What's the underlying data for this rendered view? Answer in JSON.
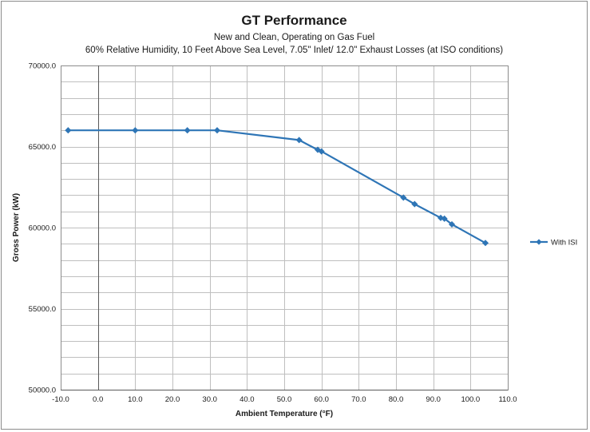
{
  "chart_data": {
    "type": "line",
    "title": "GT Performance",
    "subtitle_lines": [
      "New and Clean, Operating on Gas Fuel",
      "60% Relative Humidity, 10 Feet Above Sea Level, 7.05\"  Inlet/ 12.0\"  Exhaust Losses (at ISO conditions)"
    ],
    "xlabel": "Ambient Temperature (°F)",
    "ylabel": "Gross Power (kW)",
    "xlim": [
      -10,
      110
    ],
    "ylim": [
      50000,
      70000
    ],
    "x_major_step": 10,
    "y_major_step": 5000,
    "y_minor_step": 1000,
    "x_ticks": [
      "-10.0",
      "0.0",
      "10.0",
      "20.0",
      "30.0",
      "40.0",
      "50.0",
      "60.0",
      "70.0",
      "80.0",
      "90.0",
      "100.0",
      "110.0"
    ],
    "y_ticks": [
      "50000.0",
      "55000.0",
      "60000.0",
      "65000.0",
      "70000.0"
    ],
    "grid": true,
    "legend_position": "right",
    "series": [
      {
        "name": "With ISI",
        "color": "#2e75b6",
        "marker": "diamond",
        "points": [
          {
            "x": -8,
            "y": 66000
          },
          {
            "x": 10,
            "y": 66000
          },
          {
            "x": 24,
            "y": 66000
          },
          {
            "x": 32,
            "y": 66000
          },
          {
            "x": 54,
            "y": 65400
          },
          {
            "x": 59,
            "y": 64800
          },
          {
            "x": 60,
            "y": 64700
          },
          {
            "x": 82,
            "y": 61850
          },
          {
            "x": 85,
            "y": 61450
          },
          {
            "x": 92,
            "y": 60600
          },
          {
            "x": 93,
            "y": 60550
          },
          {
            "x": 95,
            "y": 60200
          },
          {
            "x": 104,
            "y": 59050
          }
        ]
      }
    ]
  }
}
